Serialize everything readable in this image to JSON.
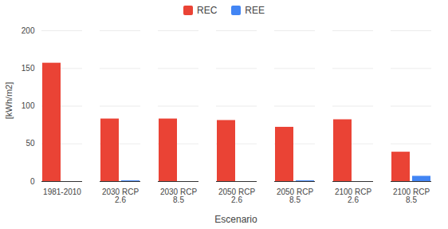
{
  "chart_data": {
    "type": "bar",
    "x_label": "Escenario",
    "y_label": "[kWh/m2]",
    "categories": [
      "1981-2010",
      "2030 RCP 2.6",
      "2030 RCP 8.5",
      "2050 RCP 2.6",
      "2050 RCP 8.5",
      "2100 RCP 2.6",
      "2100 RCP 8.5"
    ],
    "series": [
      {
        "name": "REC",
        "color": "#ea4335",
        "values": [
          157,
          83,
          83,
          81,
          72,
          82,
          39
        ]
      },
      {
        "name": "REE",
        "color": "#4285f4",
        "values": [
          0,
          1,
          0,
          0,
          1,
          0,
          7
        ]
      }
    ],
    "ylim": [
      0,
      200
    ],
    "yticks": [
      0,
      50,
      100,
      150,
      200
    ],
    "grid": true,
    "legend": "top"
  }
}
